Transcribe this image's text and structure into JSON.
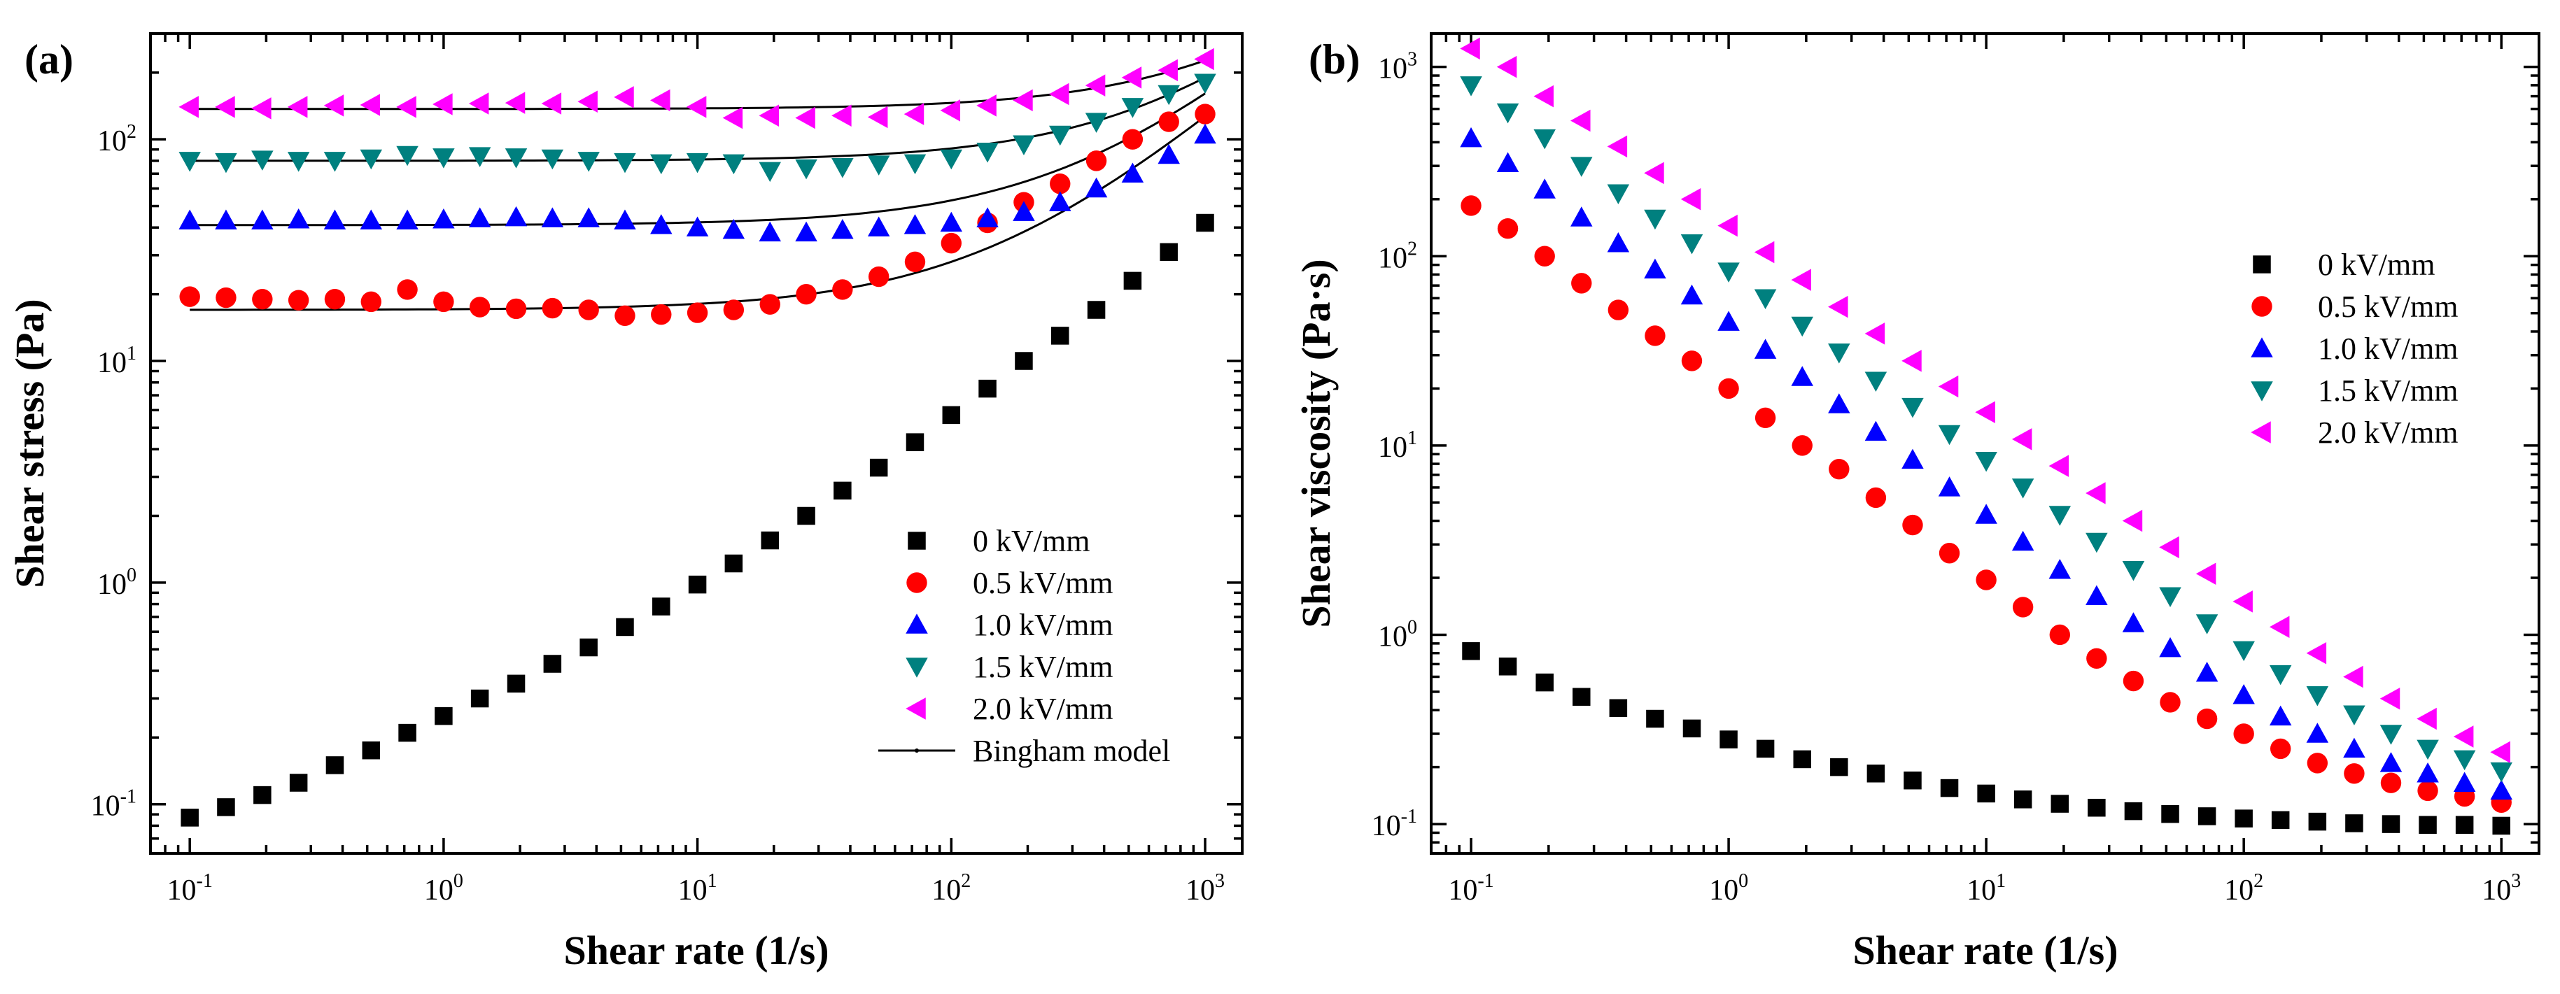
{
  "figure": {
    "panels": [
      {
        "label": "(a)",
        "xlabel": "Shear rate (1/s)",
        "ylabel": "Shear stress (Pa)"
      },
      {
        "label": "(b)",
        "xlabel": "Shear rate (1/s)",
        "ylabel": "Shear viscosity (Pa·s)"
      }
    ]
  },
  "chart_data": [
    {
      "type": "scatter",
      "title": "(a)",
      "xlabel": "Shear rate (1/s)",
      "ylabel": "Shear stress (Pa)",
      "xscale": "log",
      "yscale": "log",
      "xlim": [
        0.07,
        1400
      ],
      "ylim": [
        0.06,
        300
      ],
      "xticks": [
        0.1,
        1,
        10,
        100,
        1000
      ],
      "yticks": [
        0.1,
        1,
        10,
        100
      ],
      "legend_position": "bottom-right",
      "x": [
        0.1,
        0.1389,
        0.1931,
        0.2683,
        0.3728,
        0.518,
        0.7197,
        1.0,
        1.389,
        1.931,
        2.683,
        3.728,
        5.18,
        7.197,
        10.0,
        13.89,
        19.31,
        26.83,
        37.28,
        51.8,
        71.97,
        100.0,
        138.9,
        193.1,
        268.3,
        372.8,
        518.0,
        719.7,
        1000.0
      ],
      "series": [
        {
          "name": "0 kV/mm",
          "marker": "square",
          "color": "#000000",
          "values": [
            0.087,
            0.097,
            0.11,
            0.125,
            0.15,
            0.175,
            0.21,
            0.25,
            0.3,
            0.35,
            0.43,
            0.51,
            0.63,
            0.78,
            0.98,
            1.22,
            1.55,
            2.0,
            2.6,
            3.3,
            4.3,
            5.7,
            7.5,
            10.0,
            13.0,
            17.0,
            23.0,
            31.0,
            42.0
          ]
        },
        {
          "name": "0.5 kV/mm",
          "marker": "circle",
          "color": "#ff0000",
          "values": [
            19.5,
            19.3,
            19.0,
            18.8,
            19.0,
            18.5,
            21.0,
            18.5,
            17.5,
            17.2,
            17.3,
            17.0,
            16.0,
            16.2,
            16.5,
            17.0,
            18.0,
            20.0,
            21.0,
            24.0,
            28.0,
            34.0,
            42.0,
            52.0,
            63.0,
            80.0,
            100.0,
            120.0,
            130.0
          ]
        },
        {
          "name": "1.0 kV/mm",
          "marker": "triangle-up",
          "color": "#0000ff",
          "values": [
            43.0,
            43.0,
            43.0,
            43.5,
            43.0,
            43.0,
            43.0,
            43.5,
            44.0,
            44.5,
            44.0,
            44.0,
            43.0,
            41.0,
            40.0,
            39.0,
            38.0,
            38.0,
            39.0,
            40.0,
            41.0,
            42.0,
            44.0,
            47.0,
            52.0,
            60.0,
            70.0,
            85.0,
            105.0
          ]
        },
        {
          "name": "1.5 kV/mm",
          "marker": "triangle-down",
          "color": "#00807f",
          "values": [
            80.0,
            79.0,
            81.0,
            80.0,
            80.0,
            82.0,
            85.0,
            83.0,
            84.0,
            83.0,
            82.0,
            80.0,
            79.0,
            78.0,
            79.0,
            78.0,
            72.0,
            74.0,
            75.0,
            77.0,
            78.0,
            82.0,
            88.0,
            95.0,
            105.0,
            120.0,
            140.0,
            160.0,
            180.0
          ]
        },
        {
          "name": "2.0 kV/mm",
          "marker": "triangle-left",
          "color": "#ff00ff",
          "values": [
            140.0,
            140.0,
            138.0,
            140.0,
            142.0,
            143.0,
            140.0,
            144.0,
            145.0,
            146.0,
            145.0,
            148.0,
            155.0,
            150.0,
            140.0,
            125.0,
            128.0,
            125.0,
            128.0,
            126.0,
            130.0,
            135.0,
            142.0,
            150.0,
            160.0,
            175.0,
            190.0,
            205.0,
            230.0
          ]
        }
      ],
      "fits": [
        {
          "name": "Bingham model",
          "tau0": 17.0,
          "eta": 0.11
        },
        {
          "name": "Bingham model",
          "tau0": 41.0,
          "eta": 0.12
        },
        {
          "name": "Bingham model",
          "tau0": 80.0,
          "eta": 0.11
        },
        {
          "name": "Bingham model",
          "tau0": 137.0,
          "eta": 0.09
        }
      ],
      "legend": [
        "0 kV/mm",
        "0.5 kV/mm",
        "1.0 kV/mm",
        "1.5 kV/mm",
        "2.0 kV/mm",
        "Bingham model"
      ]
    },
    {
      "type": "scatter",
      "title": "(b)",
      "xlabel": "Shear rate (1/s)",
      "ylabel": "Shear viscosity (Pa·s)",
      "xscale": "log",
      "yscale": "log",
      "xlim": [
        0.07,
        1400
      ],
      "ylim": [
        0.07,
        1500
      ],
      "xticks": [
        0.1,
        1,
        10,
        100,
        1000
      ],
      "yticks": [
        0.1,
        1,
        10,
        100,
        1000
      ],
      "legend_position": "top-right",
      "x": [
        0.1,
        0.1389,
        0.1931,
        0.2683,
        0.3728,
        0.518,
        0.7197,
        1.0,
        1.389,
        1.931,
        2.683,
        3.728,
        5.18,
        7.197,
        10.0,
        13.89,
        19.31,
        26.83,
        37.28,
        51.8,
        71.97,
        100.0,
        138.9,
        193.1,
        268.3,
        372.8,
        518.0,
        719.7,
        1000.0
      ],
      "series": [
        {
          "name": "0 kV/mm",
          "marker": "square",
          "color": "#000000",
          "values": [
            0.82,
            0.68,
            0.56,
            0.47,
            0.41,
            0.36,
            0.32,
            0.28,
            0.25,
            0.22,
            0.2,
            0.185,
            0.17,
            0.155,
            0.145,
            0.135,
            0.128,
            0.122,
            0.117,
            0.113,
            0.11,
            0.107,
            0.105,
            0.103,
            0.101,
            0.1,
            0.099,
            0.099,
            0.098
          ]
        },
        {
          "name": "0.5 kV/mm",
          "marker": "circle",
          "color": "#ff0000",
          "values": [
            185.0,
            140.0,
            100.0,
            72.0,
            52.0,
            38.0,
            28.0,
            20.0,
            14.0,
            10.0,
            7.5,
            5.3,
            3.8,
            2.7,
            1.95,
            1.4,
            1.0,
            0.75,
            0.57,
            0.44,
            0.36,
            0.3,
            0.25,
            0.21,
            0.185,
            0.165,
            0.15,
            0.14,
            0.13
          ]
        },
        {
          "name": "1.0 kV/mm",
          "marker": "triangle-up",
          "color": "#0000ff",
          "values": [
            420.0,
            310.0,
            225.0,
            160.0,
            117.0,
            85.0,
            62.0,
            45.0,
            32.0,
            23.0,
            16.5,
            11.8,
            8.4,
            6.0,
            4.3,
            3.1,
            2.2,
            1.6,
            1.15,
            0.85,
            0.63,
            0.48,
            0.37,
            0.3,
            0.25,
            0.21,
            0.185,
            0.165,
            0.15
          ]
        },
        {
          "name": "1.5 kV/mm",
          "marker": "triangle-down",
          "color": "#00807f",
          "values": [
            800.0,
            575.0,
            420.0,
            300.0,
            215.0,
            158.0,
            117.0,
            83.0,
            60.0,
            43.0,
            31.0,
            22.0,
            16.0,
            11.5,
            8.3,
            6.0,
            4.3,
            3.1,
            2.2,
            1.6,
            1.15,
            0.83,
            0.62,
            0.48,
            0.38,
            0.3,
            0.25,
            0.22,
            0.19
          ]
        },
        {
          "name": "2.0 kV/mm",
          "marker": "triangle-left",
          "color": "#ff00ff",
          "values": [
            1250.0,
            1000.0,
            700.0,
            520.0,
            380.0,
            275.0,
            200.0,
            145.0,
            105.0,
            75.0,
            54.0,
            39.0,
            28.0,
            20.5,
            15.0,
            10.8,
            7.8,
            5.6,
            4.0,
            2.9,
            2.1,
            1.5,
            1.1,
            0.8,
            0.6,
            0.46,
            0.36,
            0.29,
            0.24
          ]
        }
      ],
      "legend": [
        "0 kV/mm",
        "0.5 kV/mm",
        "1.0 kV/mm",
        "1.5 kV/mm",
        "2.0 kV/mm"
      ]
    }
  ]
}
